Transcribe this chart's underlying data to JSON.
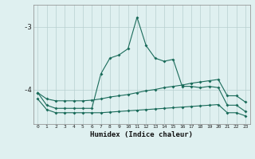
{
  "xlabel": "Humidex (Indice chaleur)",
  "background_color": "#dff0f0",
  "grid_color": "#b8d0d0",
  "line_color": "#1a6b5a",
  "x_values": [
    0,
    1,
    2,
    3,
    4,
    5,
    6,
    7,
    8,
    9,
    10,
    11,
    12,
    13,
    14,
    15,
    16,
    17,
    18,
    19,
    20,
    21,
    22,
    23
  ],
  "line1_y": [
    -4.05,
    -4.25,
    -4.3,
    -4.3,
    -4.3,
    -4.3,
    -4.3,
    -3.75,
    -3.5,
    -3.45,
    -3.35,
    -2.85,
    -3.3,
    -3.5,
    -3.55,
    -3.52,
    -3.95,
    -3.95,
    -3.97,
    -3.95,
    -3.97,
    -4.25,
    -4.25,
    -4.35
  ],
  "line2_y": [
    -4.05,
    -4.15,
    -4.18,
    -4.18,
    -4.18,
    -4.18,
    -4.17,
    -4.15,
    -4.12,
    -4.1,
    -4.08,
    -4.05,
    -4.02,
    -4.0,
    -3.97,
    -3.95,
    -3.93,
    -3.9,
    -3.88,
    -3.86,
    -3.84,
    -4.1,
    -4.1,
    -4.2
  ],
  "line3_y": [
    -4.15,
    -4.32,
    -4.37,
    -4.37,
    -4.37,
    -4.37,
    -4.37,
    -4.37,
    -4.36,
    -4.35,
    -4.34,
    -4.33,
    -4.32,
    -4.31,
    -4.3,
    -4.29,
    -4.28,
    -4.27,
    -4.26,
    -4.25,
    -4.24,
    -4.37,
    -4.37,
    -4.42
  ],
  "ylim": [
    -4.55,
    -2.65
  ],
  "xlim": [
    -0.5,
    23.5
  ],
  "yticks": [
    -4,
    -3
  ],
  "xticks": [
    0,
    1,
    2,
    3,
    4,
    5,
    6,
    7,
    8,
    9,
    10,
    11,
    12,
    13,
    14,
    15,
    16,
    17,
    18,
    19,
    20,
    21,
    22,
    23
  ]
}
